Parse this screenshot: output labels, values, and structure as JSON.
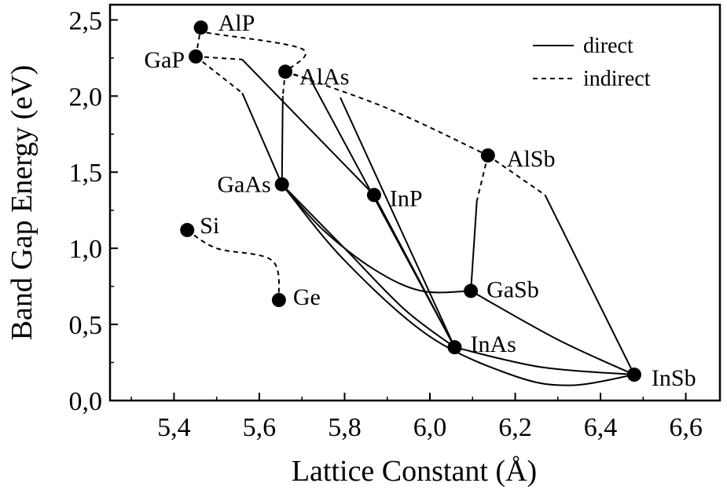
{
  "chart_data": {
    "type": "scatter",
    "xlabel": "Lattice Constant (Å)",
    "ylabel": "Band Gap Energy (eV)",
    "xlim": [
      5.25,
      6.68
    ],
    "ylim": [
      0.0,
      2.6
    ],
    "xticks": [
      5.4,
      5.6,
      5.8,
      6.0,
      6.2,
      6.4,
      6.6
    ],
    "xtick_labels": [
      "5,4",
      "5,6",
      "5,8",
      "6,0",
      "6,2",
      "6,4",
      "6,6"
    ],
    "yticks": [
      0.0,
      0.5,
      1.0,
      1.5,
      2.0,
      2.5
    ],
    "ytick_labels": [
      "0,0",
      "0,5",
      "1,0",
      "1,5",
      "2,0",
      "2,5"
    ],
    "legend": {
      "position": "top-right",
      "entries": [
        {
          "label": "direct",
          "style": "solid"
        },
        {
          "label": "indirect",
          "style": "dashed"
        }
      ]
    },
    "points": [
      {
        "name": "AlP",
        "x": 5.463,
        "y": 2.45
      },
      {
        "name": "GaP",
        "x": 5.451,
        "y": 2.26
      },
      {
        "name": "AlAs",
        "x": 5.661,
        "y": 2.16
      },
      {
        "name": "AlSb",
        "x": 6.136,
        "y": 1.61
      },
      {
        "name": "GaAs",
        "x": 5.653,
        "y": 1.42
      },
      {
        "name": "InP",
        "x": 5.869,
        "y": 1.35
      },
      {
        "name": "Si",
        "x": 5.431,
        "y": 1.12
      },
      {
        "name": "Ge",
        "x": 5.646,
        "y": 0.66
      },
      {
        "name": "GaSb",
        "x": 6.096,
        "y": 0.72
      },
      {
        "name": "InAs",
        "x": 6.058,
        "y": 0.35
      },
      {
        "name": "InSb",
        "x": 6.479,
        "y": 0.17
      }
    ],
    "curves": [
      {
        "from": "AlP",
        "to": "AlAs",
        "style": "dashed",
        "points": [
          [
            5.463,
            2.45
          ],
          [
            5.47,
            2.42
          ],
          [
            5.7,
            2.31
          ],
          [
            5.661,
            2.16
          ]
        ]
      },
      {
        "from": "GaP",
        "to": "AlP",
        "style": "dashed",
        "points": [
          [
            5.451,
            2.26
          ],
          [
            5.463,
            2.45
          ]
        ]
      },
      {
        "from": "GaP",
        "to": "GaAs",
        "style": "dashed",
        "points": [
          [
            5.451,
            2.26
          ],
          [
            5.56,
            2.02
          ]
        ]
      },
      {
        "from": "GaP",
        "to": "GaAs",
        "style": "solid",
        "points": [
          [
            5.56,
            2.02
          ],
          [
            5.653,
            1.42
          ]
        ]
      },
      {
        "from": "GaP",
        "to": "InP",
        "style": "dashed",
        "points": [
          [
            5.451,
            2.26
          ],
          [
            5.56,
            2.24
          ]
        ]
      },
      {
        "from": "GaP",
        "to": "InP",
        "style": "solid",
        "points": [
          [
            5.56,
            2.24
          ],
          [
            5.65,
            1.98
          ],
          [
            5.869,
            1.35
          ]
        ]
      },
      {
        "from": "AlAs",
        "to": "GaAs",
        "style": "dashed",
        "points": [
          [
            5.661,
            2.16
          ],
          [
            5.655,
            2.0
          ]
        ]
      },
      {
        "from": "AlAs",
        "to": "GaAs",
        "style": "solid",
        "points": [
          [
            5.655,
            2.0
          ],
          [
            5.653,
            1.42
          ]
        ]
      },
      {
        "from": "AlAs",
        "to": "AlSb",
        "style": "dashed",
        "points": [
          [
            5.661,
            2.16
          ],
          [
            5.9,
            1.92
          ],
          [
            6.136,
            1.61
          ]
        ]
      },
      {
        "from": "AlAs",
        "to": "InAs",
        "style": "dashed",
        "points": [
          [
            5.661,
            2.16
          ],
          [
            5.72,
            2.11
          ]
        ]
      },
      {
        "from": "AlAs",
        "to": "InAs",
        "style": "solid",
        "points": [
          [
            5.72,
            2.11
          ],
          [
            6.058,
            0.35
          ]
        ]
      },
      {
        "from": "AlP",
        "to": "InAs",
        "style": "solid",
        "points": [
          [
            5.79,
            1.99
          ],
          [
            6.058,
            0.35
          ]
        ]
      },
      {
        "from": "AlSb",
        "to": "GaSb",
        "style": "dashed",
        "points": [
          [
            6.136,
            1.61
          ],
          [
            6.11,
            1.31
          ]
        ]
      },
      {
        "from": "AlSb",
        "to": "GaSb",
        "style": "solid",
        "points": [
          [
            6.11,
            1.31
          ],
          [
            6.096,
            0.72
          ]
        ]
      },
      {
        "from": "AlSb",
        "to": "InSb",
        "style": "dashed",
        "points": [
          [
            6.136,
            1.61
          ],
          [
            6.27,
            1.35
          ]
        ]
      },
      {
        "from": "AlSb",
        "to": "InSb",
        "style": "solid",
        "points": [
          [
            6.27,
            1.35
          ],
          [
            6.479,
            0.17
          ]
        ]
      },
      {
        "from": "GaAs",
        "to": "GaSb",
        "style": "solid",
        "points": [
          [
            5.653,
            1.42
          ],
          [
            5.75,
            1.12
          ],
          [
            5.87,
            0.86
          ],
          [
            5.98,
            0.72
          ],
          [
            6.096,
            0.72
          ]
        ]
      },
      {
        "from": "GaAs",
        "to": "InAs",
        "style": "solid",
        "points": [
          [
            5.653,
            1.42
          ],
          [
            5.8,
            1.0
          ],
          [
            5.94,
            0.6
          ],
          [
            6.058,
            0.35
          ]
        ]
      },
      {
        "from": "InP",
        "to": "InAs",
        "style": "solid",
        "points": [
          [
            5.869,
            1.35
          ],
          [
            6.058,
            0.35
          ]
        ]
      },
      {
        "from": "GaAs",
        "to": "InSb",
        "style": "solid",
        "points": [
          [
            5.653,
            1.42
          ],
          [
            5.8,
            0.92
          ],
          [
            6.0,
            0.42
          ],
          [
            6.2,
            0.16
          ],
          [
            6.33,
            0.1
          ],
          [
            6.479,
            0.17
          ]
        ]
      },
      {
        "from": "GaSb",
        "to": "InSb",
        "style": "solid",
        "points": [
          [
            6.096,
            0.72
          ],
          [
            6.3,
            0.4
          ],
          [
            6.479,
            0.17
          ]
        ]
      },
      {
        "from": "InAs",
        "to": "InSb",
        "style": "solid",
        "points": [
          [
            6.058,
            0.35
          ],
          [
            6.26,
            0.22
          ],
          [
            6.479,
            0.17
          ]
        ]
      },
      {
        "from": "Si",
        "to": "Ge",
        "style": "dashed",
        "points": [
          [
            5.431,
            1.12
          ],
          [
            5.5,
            1.0
          ],
          [
            5.63,
            0.92
          ],
          [
            5.646,
            0.66
          ]
        ]
      }
    ]
  }
}
